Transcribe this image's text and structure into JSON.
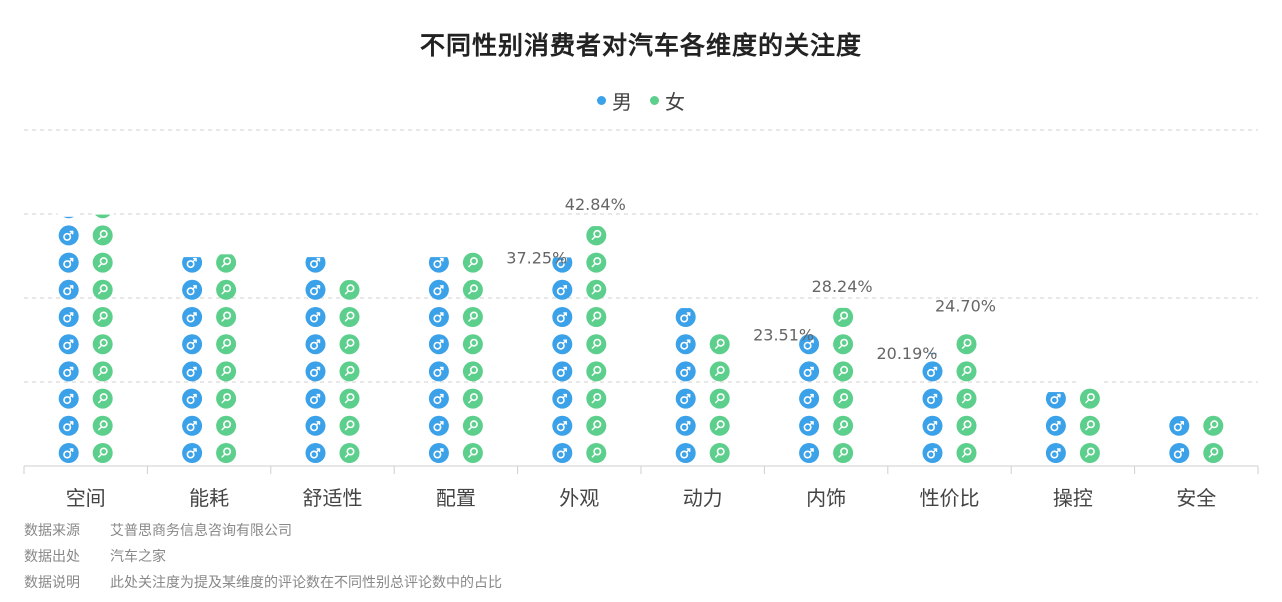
{
  "chart_data": {
    "type": "bar",
    "title": "不同性别消费者对汽车各维度的关注度",
    "categories": [
      "空间",
      "能耗",
      "舒适性",
      "配置",
      "外观",
      "动力",
      "内饰",
      "性价比",
      "操控",
      "安全"
    ],
    "series": [
      {
        "name": "男",
        "values": [
          44.5,
          37.3,
          37.3,
          37.3,
          37.25,
          28.2,
          23.51,
          20.19,
          13.2,
          8.9
        ]
      },
      {
        "name": "女",
        "values": [
          44.9,
          37.8,
          33.2,
          38.1,
          42.84,
          24.0,
          28.24,
          24.7,
          14.6,
          9.4
        ]
      }
    ],
    "data_labels": [
      {
        "category": "外观",
        "series": "男",
        "text": "37.25%"
      },
      {
        "category": "外观",
        "series": "女",
        "text": "42.84%"
      },
      {
        "category": "内饰",
        "series": "男",
        "text": "23.51%"
      },
      {
        "category": "内饰",
        "series": "女",
        "text": "28.24%"
      },
      {
        "category": "性价比",
        "series": "男",
        "text": "20.19%"
      },
      {
        "category": "性价比",
        "series": "女",
        "text": "24.70%"
      }
    ],
    "ylim": [
      0,
      60
    ],
    "xlabel": "",
    "ylabel": "",
    "grid": true,
    "legend": "top",
    "colors": {
      "male": "#3ba1e8",
      "female": "#5dcf8c"
    }
  },
  "legend": {
    "male_label": "男",
    "female_label": "女"
  },
  "source_notes": [
    {
      "key": "数据来源",
      "value": "艾普思商务信息咨询有限公司"
    },
    {
      "key": "数据出处",
      "value": "汽车之家"
    },
    {
      "key": "数据说明",
      "value": "此处关注度为提及某维度的评论数在不同性别总评论数中的占比"
    }
  ]
}
